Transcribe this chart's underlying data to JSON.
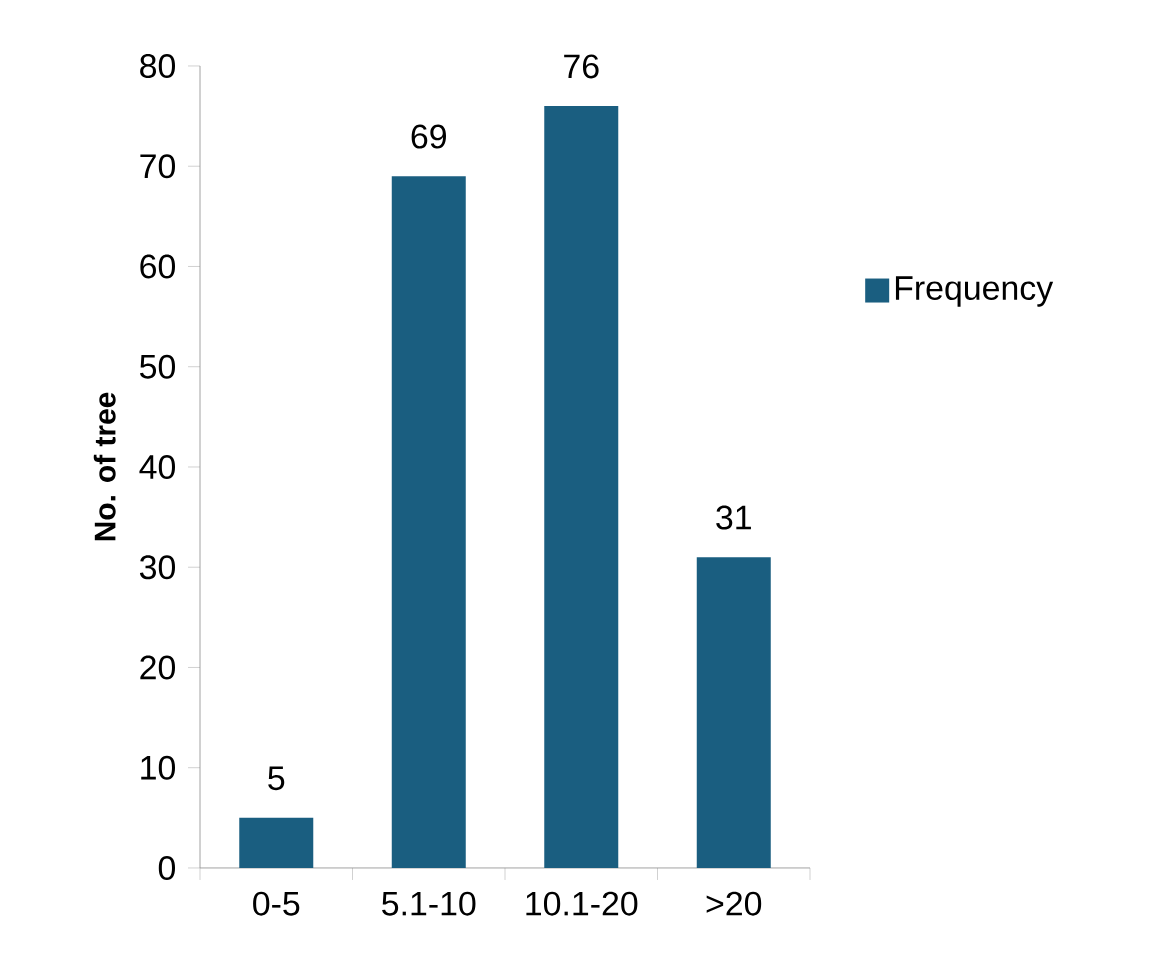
{
  "chart_data": {
    "type": "bar",
    "ylabel": "No. of tree",
    "categories": [
      "0-5",
      "5.1-10",
      "10.1-20",
      ">20"
    ],
    "series": [
      {
        "name": "Frequency",
        "color": "#1a5e80",
        "values": [
          5,
          69,
          76,
          31
        ]
      }
    ],
    "ylim": [
      0,
      80
    ],
    "yticks": [
      0,
      10,
      20,
      30,
      40,
      50,
      60,
      70,
      80
    ],
    "data_labels": true,
    "legend": "right",
    "grid": false
  }
}
